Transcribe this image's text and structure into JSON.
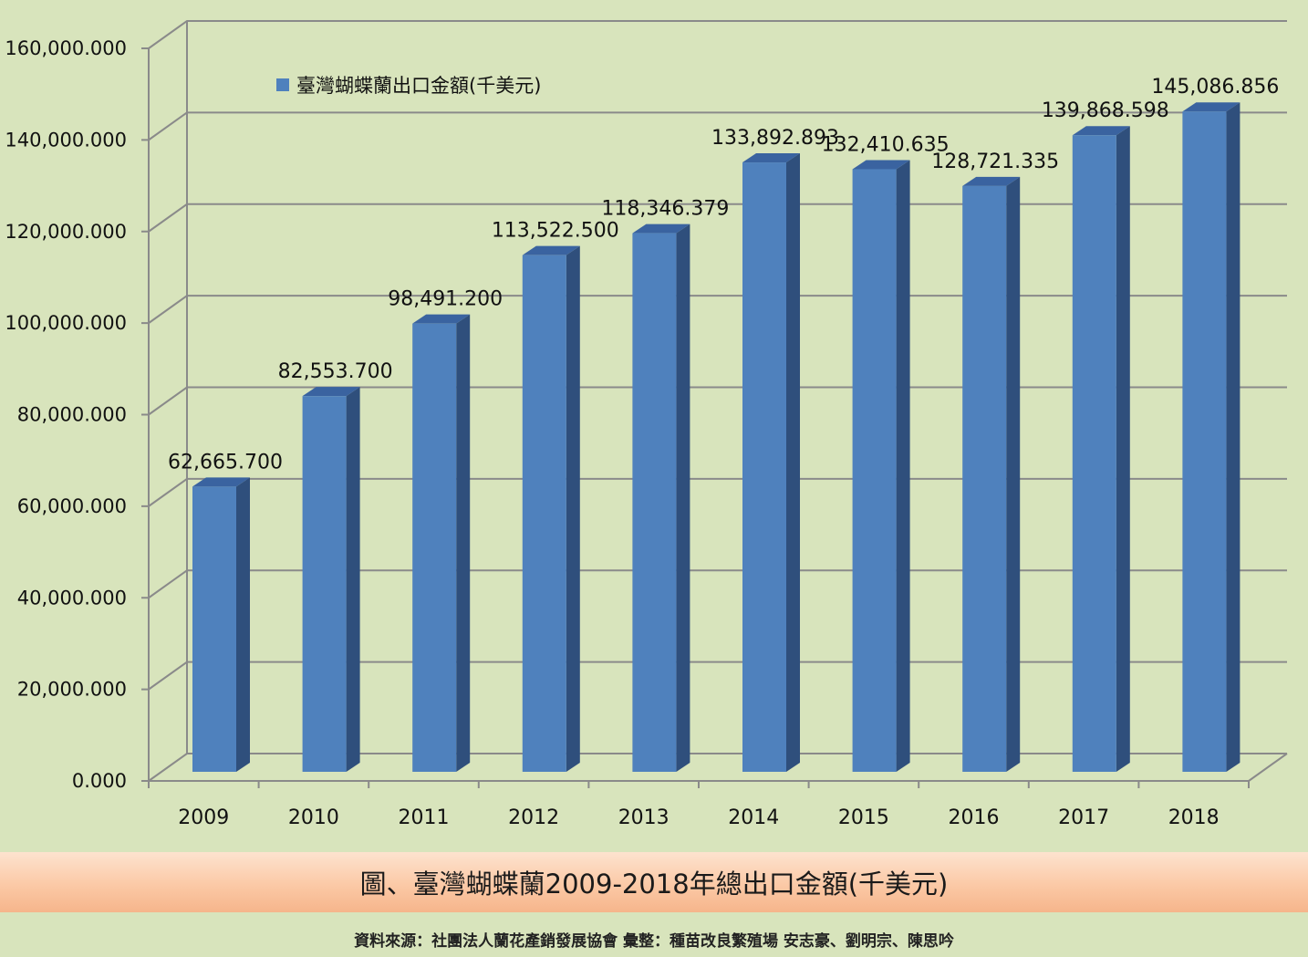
{
  "chart_data": {
    "type": "bar",
    "categories": [
      "2009",
      "2010",
      "2011",
      "2012",
      "2013",
      "2014",
      "2015",
      "2016",
      "2017",
      "2018"
    ],
    "series": [
      {
        "name": "臺灣蝴蝶蘭出口金額(千美元)",
        "values": [
          62665.7,
          82553.7,
          98491.2,
          113522.5,
          118346.379,
          133892.893,
          132410.635,
          128721.335,
          139868.598,
          145086.856
        ],
        "labels": [
          "62,665.700",
          "82,553.700",
          "98,491.200",
          "113,522.500",
          "118,346.379",
          "133,892.893",
          "132,410.635",
          "128,721.335",
          "139,868.598",
          "145,086.856"
        ],
        "color": "#4f81bd"
      }
    ],
    "ylim": [
      0,
      160000
    ],
    "yticks": [
      0,
      20000,
      40000,
      60000,
      80000,
      100000,
      120000,
      140000,
      160000
    ],
    "ytick_labels": [
      "0.000",
      "20,000.000",
      "40,000.000",
      "60,000.000",
      "80,000.000",
      "100,000.000",
      "120,000.000",
      "140,000.000",
      "160,000.000"
    ],
    "grid": true,
    "legend_position": "top-left",
    "style": "3d-column"
  },
  "caption": "圖、臺灣蝴蝶蘭2009-2018年總出口金額(千美元)",
  "source": "資料來源：社團法人蘭花產銷發展協會  彙整：種苗改良繁殖場  安志豪、劉明宗、陳思吟",
  "colors": {
    "background": "#d8e4bc",
    "bar_front": "#4f81bd",
    "bar_side": "#2f4f7c",
    "bar_top": "#3a63a0",
    "grid": "#8a8a8a",
    "caption_bar": "#fbc9a6"
  }
}
